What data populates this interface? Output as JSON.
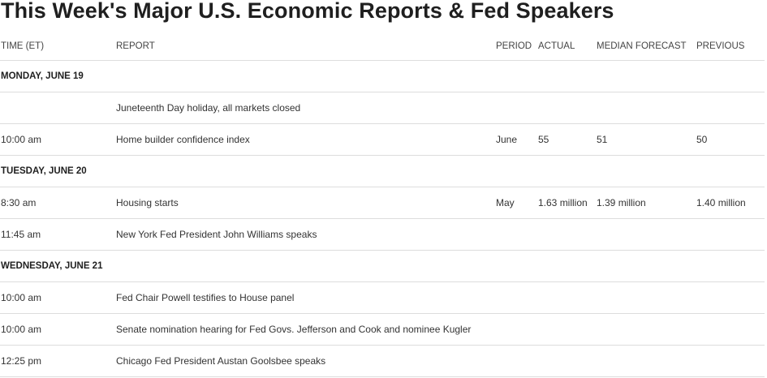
{
  "title": "This Week's Major U.S. Economic Reports & Fed Speakers",
  "headers": {
    "time": "TIME (ET)",
    "report": "REPORT",
    "period": "PERIOD",
    "actual": "ACTUAL",
    "median": "MEDIAN FORECAST",
    "previous": "PREVIOUS"
  },
  "days": {
    "monday": "MONDAY, JUNE 19",
    "tuesday": "TUESDAY, JUNE 20",
    "wednesday": "WEDNESDAY, JUNE 21"
  },
  "rows": {
    "juneteenth": {
      "time": "",
      "report": "Juneteenth Day holiday, all markets closed",
      "period": "",
      "actual": "",
      "median": "",
      "previous": ""
    },
    "home_builder": {
      "time": "10:00 am",
      "report": "Home builder confidence index",
      "period": "June",
      "actual": "55",
      "median": "51",
      "previous": "50"
    },
    "housing_starts": {
      "time": "8:30 am",
      "report": "Housing starts",
      "period": "May",
      "actual": "1.63 million",
      "median": "1.39 million",
      "previous": "1.40 million"
    },
    "williams": {
      "time": "11:45 am",
      "report": "New York Fed President John Williams speaks",
      "period": "",
      "actual": "",
      "median": "",
      "previous": ""
    },
    "powell": {
      "time": "10:00 am",
      "report": "Fed Chair Powell testifies to House panel",
      "period": "",
      "actual": "",
      "median": "",
      "previous": ""
    },
    "senate": {
      "time": "10:00 am",
      "report": "Senate nomination hearing for Fed Govs. Jefferson and Cook and nominee Kugler",
      "period": "",
      "actual": "",
      "median": "",
      "previous": ""
    },
    "goolsbee": {
      "time": "12:25 pm",
      "report": "Chicago Fed President Austan Goolsbee speaks",
      "period": "",
      "actual": "",
      "median": "",
      "previous": ""
    }
  }
}
